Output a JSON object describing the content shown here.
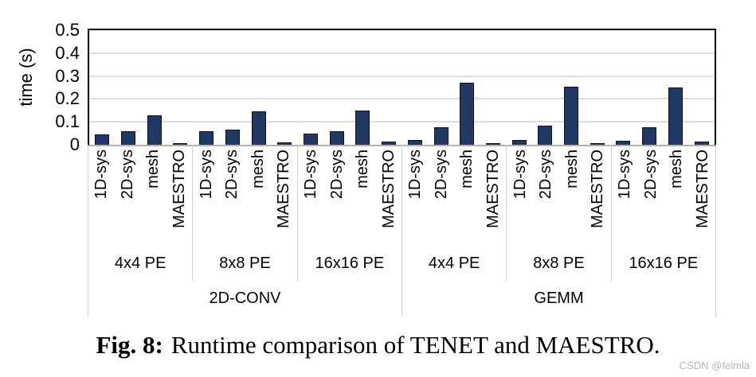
{
  "chart_data": {
    "type": "bar",
    "title": "",
    "xlabel": "",
    "ylabel": "time (s)",
    "ylim": [
      0,
      0.5
    ],
    "yticks": [
      0,
      0.1,
      0.2,
      0.3,
      0.4,
      0.5
    ],
    "ytick_labels": [
      "0",
      "0.1",
      "0.2",
      "0.3",
      "0.4",
      "0.5"
    ],
    "grid": true,
    "legend": "none",
    "bar_color": "#1f3864",
    "bar_border_color": "#0b1322",
    "gridline_color": "#dedede",
    "categories_per_group": [
      "1D-sys",
      "2D-sys",
      "mesh",
      "MAESTRO"
    ],
    "groups": [
      {
        "workload": "2D-CONV",
        "pe": "4x4 PE",
        "values": [
          0.045,
          0.06,
          0.13,
          0.008
        ]
      },
      {
        "workload": "2D-CONV",
        "pe": "8x8 PE",
        "values": [
          0.06,
          0.065,
          0.145,
          0.012
        ]
      },
      {
        "workload": "2D-CONV",
        "pe": "16x16 PE",
        "values": [
          0.05,
          0.06,
          0.148,
          0.015
        ]
      },
      {
        "workload": "GEMM",
        "pe": "4x4 PE",
        "values": [
          0.02,
          0.078,
          0.27,
          0.005
        ]
      },
      {
        "workload": "GEMM",
        "pe": "8x8 PE",
        "values": [
          0.02,
          0.082,
          0.255,
          0.008
        ]
      },
      {
        "workload": "GEMM",
        "pe": "16x16 PE",
        "values": [
          0.016,
          0.078,
          0.25,
          0.015
        ]
      }
    ],
    "workload_spans": [
      {
        "label": "2D-CONV",
        "groups": 3
      },
      {
        "label": "GEMM",
        "groups": 3
      }
    ]
  },
  "caption": {
    "label": "Fig. 8:",
    "text": "Runtime comparison of TENET and MAESTRO."
  },
  "watermark": "CSDN @feimla"
}
